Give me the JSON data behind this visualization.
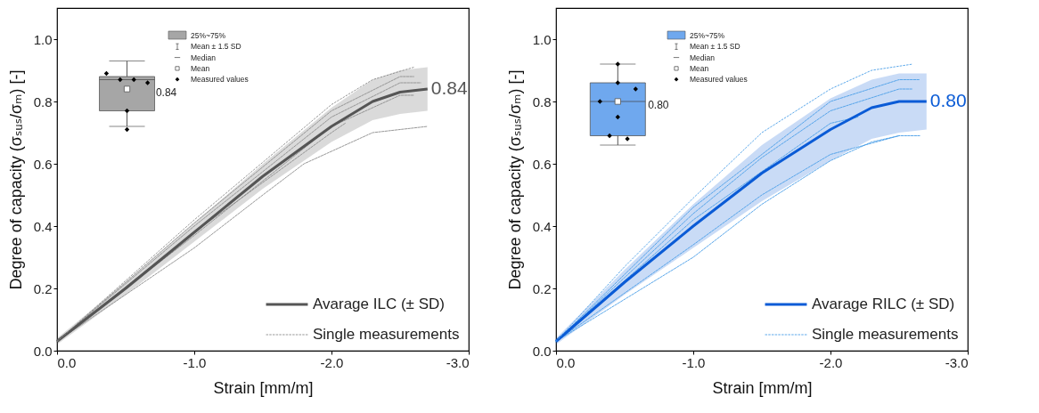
{
  "chart_data": [
    {
      "type": "line",
      "xlabel": "Strain [mm/m]",
      "ylabel": "Degree of capacity (σₛᵤₛ/σₘ) [-]",
      "xlim": [
        0,
        -3.0
      ],
      "ylim": [
        0,
        1.1
      ],
      "xticks": [
        {
          "value": 0,
          "label": "0.0"
        },
        {
          "value": -1,
          "label": "-1.0"
        },
        {
          "value": -2,
          "label": "-2.0"
        },
        {
          "value": -3,
          "label": "-3.0"
        }
      ],
      "yticks": [
        {
          "value": 0,
          "label": "0.0"
        },
        {
          "value": 0.2,
          "label": "0.2"
        },
        {
          "value": 0.4,
          "label": "0.4"
        },
        {
          "value": 0.6,
          "label": "0.6"
        },
        {
          "value": 0.8,
          "label": "0.8"
        },
        {
          "value": 1.0,
          "label": "1.0"
        }
      ],
      "grid": false,
      "legend": "bottom right",
      "annotations": [
        "Mean ± 1.5 SD",
        "Median",
        "Mean",
        {
          "text": "0.84",
          "x": -0.72,
          "y": 0.83
        }
      ],
      "series": [
        {
          "name": "Avarage ILC (± SD)",
          "color": "#555555",
          "line_style": "solid",
          "x": [
            0,
            -0.5,
            -1,
            -1.5,
            -2,
            -2.3,
            -2.5,
            -2.7
          ],
          "values": [
            0.03,
            0.2,
            0.38,
            0.56,
            0.72,
            0.8,
            0.83,
            0.84
          ],
          "lower": [
            0.02,
            0.18,
            0.35,
            0.52,
            0.67,
            0.74,
            0.76,
            0.77
          ],
          "upper": [
            0.04,
            0.22,
            0.41,
            0.6,
            0.78,
            0.87,
            0.9,
            0.91
          ],
          "value_labels": [
            null,
            null,
            null,
            null,
            null,
            null,
            null,
            "0.84"
          ]
        },
        {
          "name": "Single measurements",
          "color": "#8c8c8c",
          "line_style": "dashed",
          "x": [
            0,
            -1,
            -2,
            -2.3,
            -2.6
          ],
          "values": [
            0.03,
            0.42,
            0.79,
            0.87,
            0.91
          ]
        },
        {
          "color": "#8c8c8c",
          "line_style": "dashed",
          "x": [
            0,
            -1,
            -2,
            -2.5,
            -2.6
          ],
          "values": [
            0.03,
            0.41,
            0.77,
            0.88,
            0.88
          ]
        },
        {
          "color": "#8c8c8c",
          "line_style": "dashed",
          "x": [
            0,
            -1,
            -2,
            -2.5,
            -2.65
          ],
          "values": [
            0.03,
            0.4,
            0.75,
            0.86,
            0.86
          ]
        },
        {
          "color": "#8c8c8c",
          "line_style": "dashed",
          "x": [
            0,
            -1,
            -2,
            -2.1
          ],
          "values": [
            0.03,
            0.38,
            0.7,
            0.73
          ]
        },
        {
          "color": "#8c8c8c",
          "line_style": "dashed",
          "x": [
            0,
            -1,
            -1.5,
            -1.8,
            -2,
            -2.3,
            -2.7
          ],
          "values": [
            0.03,
            0.33,
            0.5,
            0.6,
            0.64,
            0.7,
            0.72
          ]
        },
        {
          "color": "#8c8c8c",
          "line_style": "dashed",
          "x": [
            0,
            -1,
            -2,
            -2.5,
            -2.6
          ],
          "values": [
            0.03,
            0.37,
            0.72,
            0.82,
            0.82
          ]
        },
        {
          "type": "box",
          "name": "25%~75%",
          "color": "#a6a6a6",
          "x": [
            -0.51
          ],
          "boxes": [
            {
              "low": 0.72,
              "q1": 0.77,
              "median": 0.87,
              "q3": 0.88,
              "high": 0.93,
              "mean": 0.84
            }
          ]
        },
        {
          "type": "scatter",
          "name": "Measured values",
          "color": "#000000",
          "marker": "diamond",
          "x": [
            -0.36,
            -0.46,
            -0.56,
            -0.66,
            -0.51,
            -0.51
          ],
          "values": [
            0.89,
            0.87,
            0.87,
            0.86,
            0.77,
            0.71
          ]
        }
      ]
    },
    {
      "type": "line",
      "xlabel": "Strain [mm/m]",
      "ylabel": "Degree of capacity (σₛᵤₛ/σₘ) [-]",
      "xlim": [
        0,
        -3.0
      ],
      "ylim": [
        0,
        1.1
      ],
      "xticks": [
        {
          "value": 0,
          "label": "0.0"
        },
        {
          "value": -1,
          "label": "-1.0"
        },
        {
          "value": -2,
          "label": "-2.0"
        },
        {
          "value": -3,
          "label": "-3.0"
        }
      ],
      "yticks": [
        {
          "value": 0,
          "label": "0.0"
        },
        {
          "value": 0.2,
          "label": "0.2"
        },
        {
          "value": 0.4,
          "label": "0.4"
        },
        {
          "value": 0.6,
          "label": "0.6"
        },
        {
          "value": 0.8,
          "label": "0.8"
        },
        {
          "value": 1.0,
          "label": "1.0"
        }
      ],
      "grid": false,
      "legend": "bottom right",
      "annotations": [
        "Mean ± 1.5 SD",
        "Median",
        "Mean",
        {
          "text": "0.80",
          "x": -0.67,
          "y": 0.79
        }
      ],
      "series": [
        {
          "name": "Avarage RILC (± SD)",
          "color": "#0a5bd6",
          "line_style": "solid",
          "x": [
            0,
            -0.5,
            -1,
            -1.5,
            -2,
            -2.3,
            -2.5,
            -2.7
          ],
          "values": [
            0.03,
            0.22,
            0.4,
            0.57,
            0.71,
            0.78,
            0.8,
            0.8
          ],
          "lower": [
            0.02,
            0.18,
            0.33,
            0.48,
            0.61,
            0.68,
            0.7,
            0.71
          ],
          "upper": [
            0.04,
            0.26,
            0.47,
            0.66,
            0.81,
            0.87,
            0.89,
            0.89
          ],
          "value_labels": [
            null,
            null,
            null,
            null,
            null,
            null,
            null,
            "0.80"
          ]
        },
        {
          "name": "Single measurements",
          "color": "#4a9ee8",
          "line_style": "dashed",
          "x": [
            0,
            -0.5,
            -1,
            -1.5,
            -2,
            -2.3,
            -2.6
          ],
          "values": [
            0.03,
            0.27,
            0.49,
            0.7,
            0.84,
            0.9,
            0.92
          ]
        },
        {
          "color": "#4a9ee8",
          "line_style": "dashed",
          "x": [
            0,
            -1,
            -2,
            -2.5,
            -2.65
          ],
          "values": [
            0.03,
            0.46,
            0.8,
            0.87,
            0.87
          ]
        },
        {
          "color": "#4a9ee8",
          "line_style": "dashed",
          "x": [
            0,
            -1,
            -1.5,
            -2,
            -2.5,
            -2.6
          ],
          "values": [
            0.03,
            0.44,
            0.62,
            0.77,
            0.84,
            0.84
          ]
        },
        {
          "color": "#4a9ee8",
          "line_style": "dashed",
          "x": [
            0,
            -1,
            -2,
            -2.2
          ],
          "values": [
            0.03,
            0.42,
            0.73,
            0.75
          ]
        },
        {
          "color": "#4a9ee8",
          "line_style": "dashed",
          "x": [
            0,
            -1,
            -1.5,
            -2,
            -2.5,
            -2.65
          ],
          "values": [
            0.03,
            0.34,
            0.5,
            0.63,
            0.69,
            0.69
          ]
        },
        {
          "color": "#4a9ee8",
          "line_style": "dashed",
          "x": [
            0,
            -1,
            -1.5,
            -2,
            -2.3,
            -2.5
          ],
          "values": [
            0.03,
            0.3,
            0.47,
            0.61,
            0.67,
            0.69
          ]
        },
        {
          "type": "box",
          "name": "25%~75%",
          "color": "#6fa8ee",
          "x": [
            -0.45
          ],
          "boxes": [
            {
              "low": 0.66,
              "q1": 0.69,
              "median": 0.8,
              "q3": 0.86,
              "high": 0.92,
              "mean": 0.8
            }
          ]
        },
        {
          "type": "scatter",
          "name": "Measured values",
          "color": "#000000",
          "marker": "diamond",
          "x": [
            -0.45,
            -0.45,
            -0.58,
            -0.32,
            -0.45,
            -0.39,
            -0.52
          ],
          "values": [
            0.92,
            0.86,
            0.84,
            0.8,
            0.75,
            0.69,
            0.68
          ]
        }
      ]
    }
  ]
}
